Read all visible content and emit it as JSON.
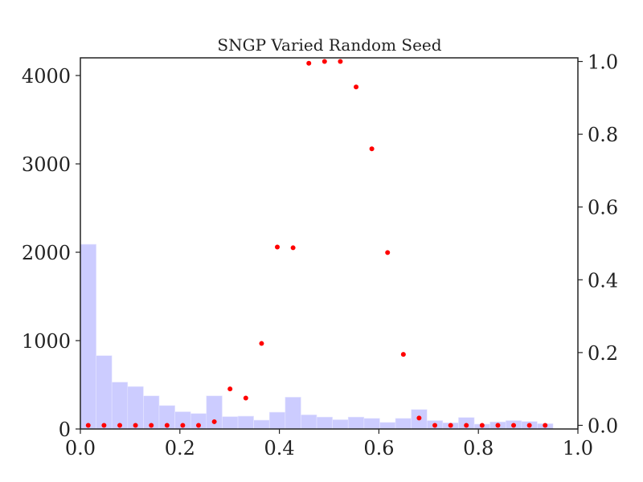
{
  "chart_data": {
    "type": "bar",
    "title": "SNGP Varied Random Seed",
    "xlabel": "",
    "ylabel": "",
    "xlim": [
      0.0,
      1.0
    ],
    "ylim": [
      0,
      4200
    ],
    "y2lim": [
      -0.01,
      1.01
    ],
    "grid": false,
    "x_ticks": [
      "0.0",
      "0.2",
      "0.4",
      "0.6",
      "0.8",
      "1.0"
    ],
    "y_ticks": [
      "0",
      "1000",
      "2000",
      "3000",
      "4000"
    ],
    "y2_ticks": [
      "0.0",
      "0.2",
      "0.4",
      "0.6",
      "0.8",
      "1.0"
    ],
    "colors": {
      "histogram": "#ccccff",
      "points": "#ff0000"
    },
    "series": [
      {
        "type": "histogram",
        "bin_edges": [
          0.0,
          0.0317,
          0.0633,
          0.095,
          0.1267,
          0.1583,
          0.19,
          0.2217,
          0.2533,
          0.285,
          0.3167,
          0.3483,
          0.38,
          0.4117,
          0.4433,
          0.475,
          0.5067,
          0.5383,
          0.57,
          0.6017,
          0.6333,
          0.665,
          0.6967,
          0.7283,
          0.76,
          0.7917,
          0.8233,
          0.855,
          0.8867,
          0.9183,
          0.95
        ],
        "values": [
          2090,
          830,
          530,
          480,
          375,
          265,
          195,
          175,
          375,
          140,
          145,
          100,
          190,
          360,
          160,
          135,
          105,
          135,
          120,
          75,
          120,
          220,
          95,
          70,
          130,
          55,
          80,
          95,
          85,
          60
        ]
      },
      {
        "type": "scatter",
        "axis": "right",
        "x": [
          0.0158,
          0.0475,
          0.0792,
          0.1108,
          0.1425,
          0.1742,
          0.2058,
          0.2375,
          0.2692,
          0.3008,
          0.3325,
          0.3642,
          0.3958,
          0.4275,
          0.4592,
          0.4908,
          0.5225,
          0.5542,
          0.5858,
          0.6175,
          0.6492,
          0.6808,
          0.7125,
          0.7442,
          0.7758,
          0.8075,
          0.8392,
          0.8708,
          0.9025,
          0.9342
        ],
        "y": [
          0.0,
          0.0,
          0.0,
          0.0,
          0.0,
          0.0,
          0.0,
          0.0,
          0.01,
          0.1,
          0.075,
          0.225,
          0.49,
          0.488,
          0.995,
          1.0,
          1.0,
          0.93,
          0.76,
          0.475,
          0.195,
          0.02,
          0.0,
          0.0,
          0.0,
          0.0,
          0.0,
          0.0,
          0.0,
          0.0
        ]
      }
    ]
  }
}
